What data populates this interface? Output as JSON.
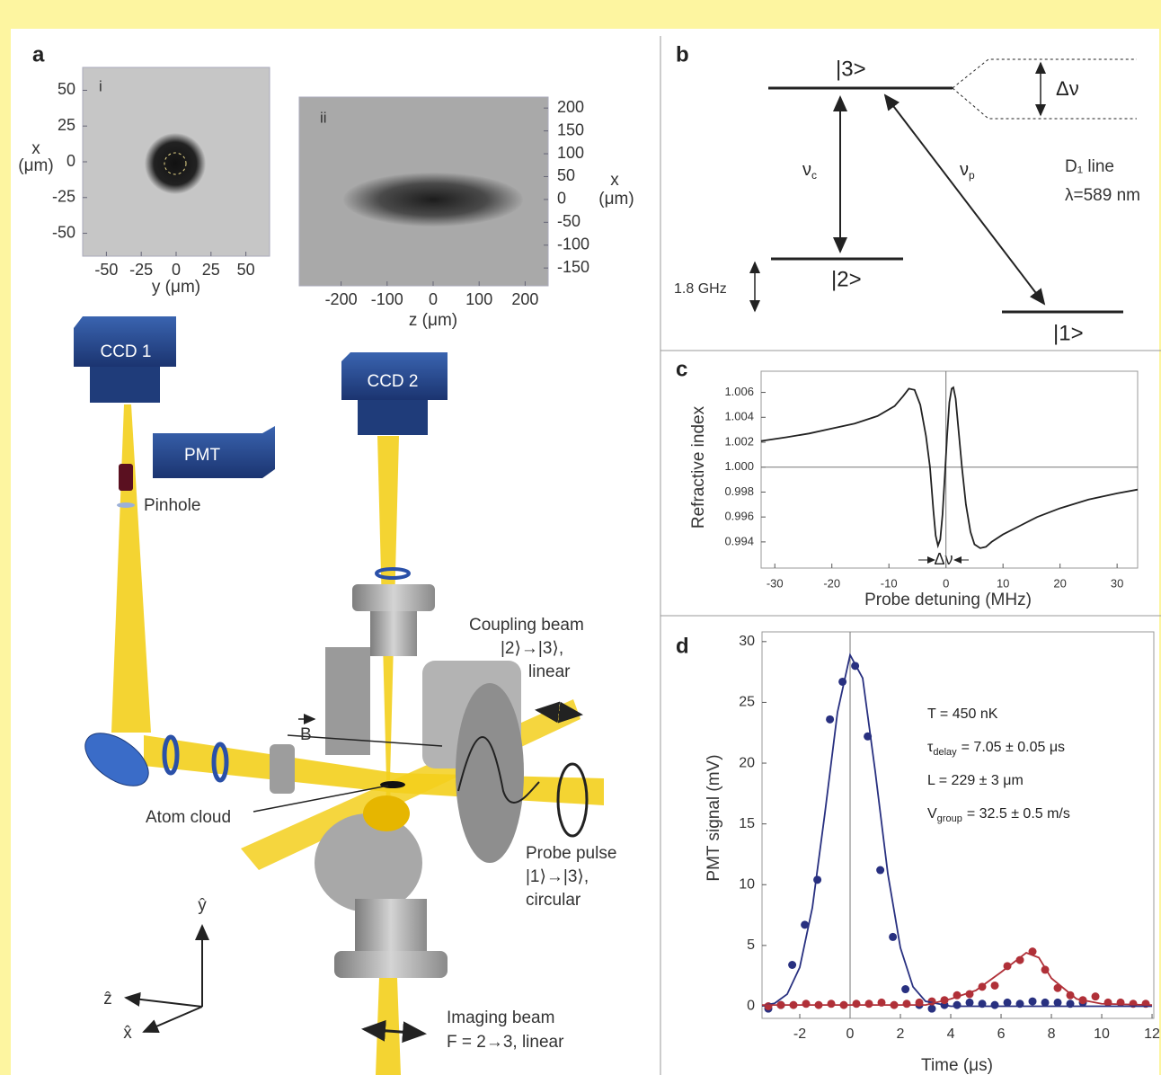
{
  "panel_labels": [
    "a",
    "b",
    "c",
    "d"
  ],
  "panel_a": {
    "image_i": {
      "label": "i",
      "xticks": [
        -50,
        -25,
        0,
        25,
        50
      ],
      "yticks": [
        50,
        25,
        0,
        -25,
        -50
      ],
      "xlim": [
        -67,
        67
      ],
      "ylim": [
        -66,
        66
      ],
      "xlabel": "y (μm)",
      "ylabel": [
        "x",
        "(μm)"
      ]
    },
    "image_ii": {
      "label": "ii",
      "xticks": [
        -200,
        -100,
        0,
        100,
        200
      ],
      "yticks": [
        200,
        150,
        100,
        50,
        0,
        -50,
        -100,
        -150
      ],
      "xlim": [
        -291,
        250
      ],
      "ylim": [
        -189,
        224
      ],
      "xlabel": "z (μm)",
      "ylabel": [
        "x",
        "(μm)"
      ]
    },
    "apparatus": {
      "ccd1": "CCD 1",
      "ccd2": "CCD 2",
      "pmt": "PMT",
      "pinhole": "Pinhole",
      "coupling_beam": [
        "Coupling beam",
        "|2⟩→|3⟩,",
        "linear"
      ],
      "field": "B",
      "atom_cloud": "Atom cloud",
      "probe_pulse": [
        "Probe pulse",
        "|1⟩→|3⟩,",
        "circular"
      ],
      "imaging_beam": [
        "Imaging beam",
        "F = 2→3, linear"
      ],
      "axes": [
        "ŷ",
        "ẑ",
        "x̂"
      ]
    }
  },
  "panel_b": {
    "levels": [
      "|3>",
      "|2>",
      "|1>"
    ],
    "splitting": "Δν",
    "coupling": {
      "symbol": "ν",
      "sub": "c"
    },
    "probe": {
      "symbol": "ν",
      "sub": "p"
    },
    "line_name": "D₁ line",
    "wavelength": "λ=589 nm",
    "ground_splitting": "1.8 GHz"
  },
  "chart_data": [
    {
      "type": "line",
      "xlabel": "Probe detuning (MHz)",
      "ylabel": "Refractive index",
      "annotation": "Δν",
      "x": [
        -32.4,
        -28,
        -24,
        -20,
        -16,
        -12,
        -9,
        -7.5,
        -6.5,
        -5.5,
        -4.5,
        -3.5,
        -2.8,
        -2.2,
        -1.8,
        -1.4,
        -1,
        -0.6,
        -0.2,
        0.2,
        0.6,
        1,
        1.3,
        1.7,
        2.2,
        2.8,
        3.5,
        4.3,
        5,
        6,
        7,
        8,
        10,
        13,
        16,
        20,
        25,
        30,
        33.6
      ],
      "series": [
        {
          "color": "#222222",
          "values": [
            1.0021,
            1.0024,
            1.0027,
            1.0031,
            1.0035,
            1.0041,
            1.0049,
            1.0057,
            1.0063,
            1.0062,
            1.005,
            1.0025,
            1.0,
            0.9965,
            0.9945,
            0.9937,
            0.9942,
            0.9962,
            0.9993,
            1.0025,
            1.0052,
            1.0063,
            1.0064,
            1.0055,
            1.003,
            1.0,
            0.997,
            0.9948,
            0.9938,
            0.9935,
            0.9936,
            0.994,
            0.9946,
            0.9953,
            0.996,
            0.9967,
            0.9974,
            0.9979,
            0.9982
          ]
        }
      ],
      "xlim": [
        -32.4,
        33.6
      ],
      "ylim": [
        0.9919,
        1.0077
      ],
      "xticks": [
        -30,
        -20,
        -10,
        0,
        10,
        20,
        30
      ],
      "yticks": [
        0.994,
        0.996,
        0.998,
        {
          "value": 1,
          "label": "1.000"
        },
        1.002,
        1.004,
        1.006
      ],
      "xline": 0,
      "yline": 1
    },
    {
      "type": "scatter",
      "xlabel": "Time (μs)",
      "ylabel": "PMT signal (mV)",
      "annotations": [
        {
          "text": "T = 450 nK"
        },
        {
          "symbol": "τ",
          "sub": "delay",
          "text": "= 7.05 ± 0.05 μs"
        },
        {
          "text": "L = 229 ± 3 μm"
        },
        {
          "symbol": "V",
          "sub": "group",
          "text": "= 32.5 ± 0.5 m/s"
        }
      ],
      "series": [
        {
          "color": "#283080",
          "x": [
            -3.25,
            -2.75,
            -2.3,
            -1.8,
            -1.3,
            -0.8,
            -0.3,
            0.2,
            0.7,
            1.2,
            1.7,
            2.2,
            2.75,
            3.25,
            3.75,
            4.25,
            4.75,
            5.25,
            5.75,
            6.25,
            6.75,
            7.25,
            7.75,
            8.25,
            8.75,
            9.25
          ],
          "values": [
            -0.2,
            0.1,
            3.4,
            6.7,
            10.4,
            23.6,
            26.7,
            28.0,
            22.2,
            11.2,
            5.7,
            1.4,
            0.1,
            -0.2,
            0.1,
            0.1,
            0.3,
            0.2,
            0.1,
            0.3,
            0.2,
            0.4,
            0.3,
            0.3,
            0.2,
            0.3
          ]
        },
        {
          "color": "#b03038",
          "x": [
            -3.25,
            -2.75,
            -2.25,
            -1.75,
            -1.25,
            -0.75,
            -0.25,
            0.25,
            0.75,
            1.25,
            1.75,
            2.25,
            2.75,
            3.25,
            3.75,
            4.25,
            4.75,
            5.25,
            5.75,
            6.25,
            6.75,
            7.25,
            7.75,
            8.25,
            8.75,
            9.25,
            9.75,
            10.25,
            10.75,
            11.25,
            11.75
          ],
          "values": [
            0.0,
            0.1,
            0.1,
            0.2,
            0.1,
            0.2,
            0.1,
            0.2,
            0.2,
            0.3,
            0.1,
            0.2,
            0.3,
            0.4,
            0.5,
            0.9,
            1.0,
            1.6,
            1.7,
            3.3,
            3.8,
            4.5,
            3.0,
            1.5,
            0.9,
            0.5,
            0.8,
            0.3,
            0.3,
            0.2,
            0.2
          ]
        },
        {
          "color": "#283080",
          "style": "line",
          "x": [
            -3.5,
            -3,
            -2.5,
            -2,
            -1.5,
            -1,
            -0.5,
            0,
            0.5,
            1,
            1.5,
            2,
            2.5,
            3,
            4,
            6,
            8,
            10,
            12
          ],
          "values": [
            0.04,
            0.24,
            0.99,
            3.2,
            8.1,
            15.9,
            24.2,
            28.9,
            27.0,
            19.3,
            10.9,
            4.8,
            1.6,
            0.4,
            0.0,
            0.0,
            0.0,
            0.0,
            0.0
          ]
        },
        {
          "color": "#b03038",
          "style": "line",
          "x": [
            -3.5,
            3,
            4,
            5,
            6,
            7,
            7.5,
            8,
            9,
            10,
            12
          ],
          "values": [
            0.1,
            0.1,
            0.6,
            1.3,
            2.8,
            4.4,
            4.0,
            2.3,
            0.6,
            0.2,
            0.1
          ]
        }
      ],
      "xlim": [
        -3.5,
        12.07
      ],
      "ylim": [
        -1,
        30.8
      ],
      "xticks": [
        -2,
        0,
        2,
        4,
        6,
        8,
        10,
        12
      ],
      "yticks": [
        0,
        5,
        10,
        15,
        20,
        25,
        30
      ],
      "xline": 0
    }
  ]
}
